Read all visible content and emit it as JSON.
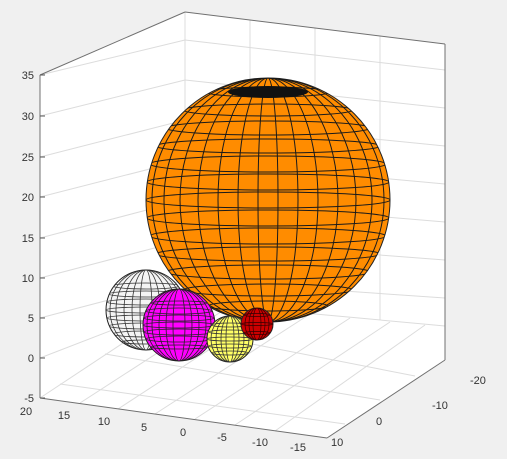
{
  "chart_data": {
    "type": "scatter3d",
    "title": "",
    "xlabel": "",
    "ylabel": "",
    "zlabel": "",
    "grid": true,
    "view": "3d-perspective",
    "axes": {
      "x_ticks": [
        "20",
        "15",
        "10",
        "5",
        "0",
        "-5",
        "-10",
        "-15"
      ],
      "y_ticks": [
        "-20",
        "-10",
        "0",
        "10"
      ],
      "z_ticks": [
        "-5",
        "0",
        "5",
        "10",
        "15",
        "20",
        "25",
        "30",
        "35"
      ],
      "xlim": [
        -15,
        20
      ],
      "ylim": [
        -20,
        10
      ],
      "zlim": [
        -5,
        35
      ]
    },
    "spheres": [
      {
        "name": "",
        "color": "#ff8c00",
        "center": [
          3,
          -5,
          18
        ],
        "radius": 13
      },
      {
        "name": "",
        "color": "#ffffff",
        "center": [
          13,
          5,
          5
        ],
        "radius": 5
      },
      {
        "name": "",
        "color": "#ff00ff",
        "center": [
          9,
          3,
          4
        ],
        "radius": 4
      },
      {
        "name": "",
        "color": "#ffff66",
        "center": [
          1,
          2,
          3
        ],
        "radius": 3
      },
      {
        "name": "",
        "color": "#cc0000",
        "center": [
          -3,
          -1,
          5
        ],
        "radius": 2
      }
    ]
  }
}
